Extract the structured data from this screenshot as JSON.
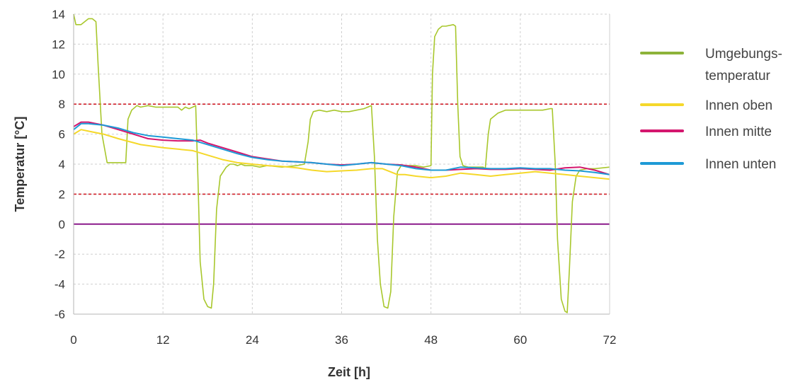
{
  "chart_data": {
    "type": "line",
    "title": "",
    "xlabel": "Zeit [h]",
    "ylabel": "Temperatur [°C]",
    "xlim": [
      0,
      72
    ],
    "ylim": [
      -6,
      14
    ],
    "xticks": [
      0,
      12,
      24,
      36,
      48,
      60,
      72
    ],
    "xtick_labels": [
      "0",
      "12",
      "24",
      "36",
      "48",
      "60",
      "72"
    ],
    "yticks": [
      -6,
      -4,
      -2,
      0,
      2,
      4,
      6,
      8,
      10,
      12,
      14
    ],
    "ytick_labels": [
      "-6",
      "-4",
      "-2",
      "0",
      "2",
      "4",
      "6",
      "8",
      "10",
      "12",
      "14"
    ],
    "grid": true,
    "legend_position": "right",
    "reference_lines": [
      {
        "y": 8,
        "style": "dashed",
        "color": "#d0202a"
      },
      {
        "y": 2,
        "style": "dashed",
        "color": "#d0202a"
      },
      {
        "y": 0,
        "style": "solid",
        "color": "#8b1a8b"
      }
    ],
    "series": [
      {
        "name": "Umgebungs-temperatur",
        "legend_lines": [
          "Umgebungs-",
          "temperatur"
        ],
        "color": "#a8c72c",
        "legend_color": "#8db33a",
        "x": [
          0,
          0.3,
          1,
          2,
          2.5,
          3,
          3.3,
          3.8,
          4.5,
          5,
          6,
          7,
          7.3,
          7.8,
          8.5,
          9,
          10,
          11,
          12,
          13,
          14,
          14.5,
          15,
          15.5,
          16,
          16.4,
          16.7,
          17,
          17.5,
          18,
          18.5,
          18.8,
          19.2,
          19.7,
          20.5,
          21,
          21.5,
          22,
          22.5,
          23,
          24,
          25,
          26,
          28,
          30,
          31,
          31.5,
          31.8,
          32.2,
          33,
          34,
          35,
          36,
          37,
          38,
          39,
          40,
          40.4,
          40.8,
          41.2,
          41.7,
          42.2,
          42.6,
          43,
          43.5,
          44,
          46,
          47,
          48,
          48.2,
          48.5,
          49,
          49.5,
          50,
          51,
          51.3,
          51.6,
          51.9,
          52.3,
          53,
          54,
          55,
          55.3,
          55.7,
          56,
          57,
          58,
          60,
          62,
          63,
          64,
          64.3,
          64.7,
          65,
          65.5,
          66,
          66.3,
          66.6,
          67,
          67.5,
          68,
          69,
          70,
          72
        ],
        "values": [
          14,
          13.3,
          13.3,
          13.7,
          13.7,
          13.5,
          10.5,
          6,
          4.1,
          4.1,
          4.1,
          4.1,
          7,
          7.6,
          7.9,
          7.8,
          7.9,
          7.8,
          7.8,
          7.8,
          7.8,
          7.6,
          7.8,
          7.7,
          7.8,
          7.9,
          3,
          -2.5,
          -5,
          -5.5,
          -5.6,
          -4,
          1,
          3.2,
          3.8,
          4.0,
          4.0,
          3.9,
          4.0,
          3.9,
          3.9,
          3.8,
          3.9,
          3.8,
          3.9,
          4.0,
          5.5,
          7.0,
          7.5,
          7.6,
          7.5,
          7.6,
          7.5,
          7.5,
          7.6,
          7.7,
          7.9,
          4.5,
          -1,
          -4,
          -5.5,
          -5.6,
          -4.5,
          0.5,
          3.5,
          3.9,
          3.9,
          3.8,
          3.9,
          10,
          12.5,
          13,
          13.2,
          13.2,
          13.3,
          13.2,
          8,
          4.5,
          3.9,
          3.8,
          3.8,
          3.8,
          3.7,
          6,
          7,
          7.4,
          7.6,
          7.6,
          7.6,
          7.6,
          7.7,
          7.7,
          4,
          -1,
          -5,
          -5.8,
          -5.9,
          -3,
          1.5,
          3.2,
          3.6,
          3.7,
          3.7,
          3.8
        ]
      },
      {
        "name": "Innen oben",
        "color": "#f5d82a",
        "x": [
          0,
          1,
          2,
          4,
          6,
          9,
          12,
          14,
          16,
          18,
          20,
          22,
          24,
          26,
          28,
          30,
          32,
          34,
          36,
          38,
          40,
          41.5,
          42.5,
          43.5,
          44.5,
          46,
          48,
          50,
          52,
          54,
          56,
          58,
          60,
          62,
          64,
          66,
          68,
          70,
          72
        ],
        "values": [
          6.0,
          6.3,
          6.2,
          6.0,
          5.7,
          5.3,
          5.1,
          5.0,
          4.9,
          4.6,
          4.3,
          4.1,
          4.0,
          3.9,
          3.85,
          3.75,
          3.6,
          3.5,
          3.55,
          3.6,
          3.7,
          3.7,
          3.5,
          3.3,
          3.3,
          3.2,
          3.1,
          3.2,
          3.4,
          3.3,
          3.2,
          3.3,
          3.4,
          3.5,
          3.4,
          3.3,
          3.2,
          3.1,
          3.0
        ]
      },
      {
        "name": "Innen mitte",
        "color": "#d4166e",
        "x": [
          0,
          1,
          2,
          4,
          6,
          8,
          10,
          12,
          14,
          16,
          17,
          18,
          20,
          22,
          24,
          26,
          28,
          30,
          32,
          34,
          36,
          38,
          40,
          42,
          44,
          46,
          48,
          50,
          52,
          54,
          56,
          58,
          60,
          62,
          64,
          66,
          68,
          70,
          72
        ],
        "values": [
          6.5,
          6.8,
          6.8,
          6.6,
          6.3,
          6.0,
          5.7,
          5.6,
          5.55,
          5.55,
          5.6,
          5.4,
          5.1,
          4.8,
          4.5,
          4.35,
          4.2,
          4.15,
          4.1,
          4.0,
          3.95,
          4.0,
          4.1,
          4.0,
          3.95,
          3.8,
          3.6,
          3.6,
          3.65,
          3.7,
          3.65,
          3.65,
          3.7,
          3.65,
          3.6,
          3.75,
          3.8,
          3.6,
          3.3
        ]
      },
      {
        "name": "Innen unten",
        "color": "#1e9ad6",
        "x": [
          0,
          1,
          2,
          4,
          6,
          8,
          10,
          12,
          14,
          16,
          18,
          20,
          22,
          24,
          26,
          28,
          30,
          32,
          34,
          36,
          38,
          40,
          42,
          44,
          46,
          48,
          50,
          52,
          54,
          56,
          58,
          60,
          62,
          64,
          66,
          68,
          70,
          72
        ],
        "values": [
          6.3,
          6.7,
          6.7,
          6.6,
          6.4,
          6.1,
          5.9,
          5.8,
          5.7,
          5.6,
          5.3,
          5.0,
          4.7,
          4.45,
          4.3,
          4.2,
          4.15,
          4.1,
          4.0,
          3.9,
          4.0,
          4.1,
          4.0,
          3.9,
          3.7,
          3.6,
          3.6,
          3.8,
          3.75,
          3.7,
          3.7,
          3.75,
          3.7,
          3.7,
          3.6,
          3.55,
          3.45,
          3.3
        ]
      }
    ]
  }
}
